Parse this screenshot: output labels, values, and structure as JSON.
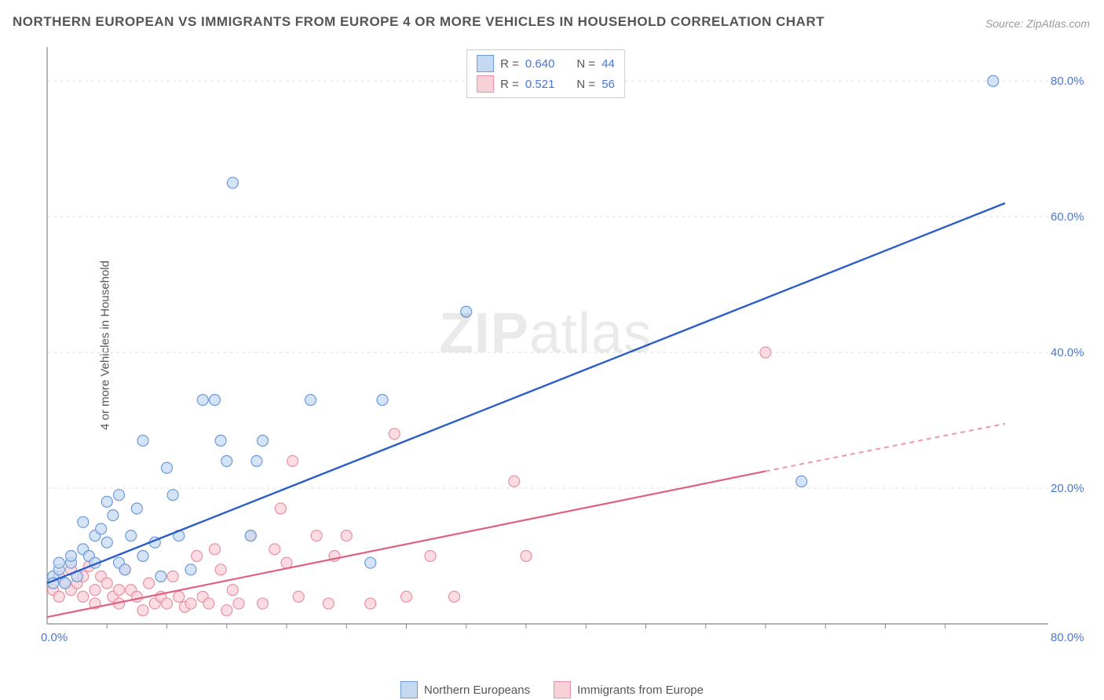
{
  "title": "NORTHERN EUROPEAN VS IMMIGRANTS FROM EUROPE 4 OR MORE VEHICLES IN HOUSEHOLD CORRELATION CHART",
  "source": "Source: ZipAtlas.com",
  "y_axis_label": "4 or more Vehicles in Household",
  "watermark_bold": "ZIP",
  "watermark_rest": "atlas",
  "chart": {
    "type": "scatter",
    "background_color": "#ffffff",
    "grid_color": "#e0e0e0",
    "axis_color": "#888888",
    "tick_color": "#888888",
    "x_range": [
      0,
      80
    ],
    "y_range": [
      0,
      85
    ],
    "y_gridlines": [
      20,
      40,
      60,
      80
    ],
    "y_tick_labels": [
      "20.0%",
      "40.0%",
      "60.0%",
      "80.0%"
    ],
    "y_tick_color": "#4876d6",
    "x_tick_min_label": "0.0%",
    "x_tick_max_label": "80.0%",
    "x_tick_color": "#4876d6",
    "x_minor_ticks": [
      5,
      10,
      15,
      20,
      25,
      30,
      35,
      40,
      45,
      50,
      55,
      60,
      65,
      70,
      75
    ],
    "series": [
      {
        "name": "Northern Europeans",
        "color_fill": "#c5d9f1",
        "color_stroke": "#6b9bd8",
        "marker_radius": 7,
        "marker_opacity": 0.75,
        "R": "0.640",
        "N": "44",
        "trend": {
          "x1": 0,
          "y1": 6,
          "x2": 80,
          "y2": 62,
          "color": "#2b5ec9",
          "width": 2.4
        },
        "points": [
          [
            0.5,
            7
          ],
          [
            0.5,
            6
          ],
          [
            1,
            8
          ],
          [
            1,
            9
          ],
          [
            1.5,
            6
          ],
          [
            2,
            9
          ],
          [
            2,
            10
          ],
          [
            2.5,
            7
          ],
          [
            3,
            11
          ],
          [
            3,
            15
          ],
          [
            3.5,
            10
          ],
          [
            4,
            9
          ],
          [
            4,
            13
          ],
          [
            4.5,
            14
          ],
          [
            5,
            18
          ],
          [
            5,
            12
          ],
          [
            5.5,
            16
          ],
          [
            6,
            19
          ],
          [
            6,
            9
          ],
          [
            6.5,
            8
          ],
          [
            7,
            13
          ],
          [
            7.5,
            17
          ],
          [
            8,
            27
          ],
          [
            8,
            10
          ],
          [
            9,
            12
          ],
          [
            9.5,
            7
          ],
          [
            10,
            23
          ],
          [
            10.5,
            19
          ],
          [
            11,
            13
          ],
          [
            12,
            8
          ],
          [
            13,
            33
          ],
          [
            14,
            33
          ],
          [
            14.5,
            27
          ],
          [
            15,
            24
          ],
          [
            15.5,
            65
          ],
          [
            17,
            13
          ],
          [
            17.5,
            24
          ],
          [
            18,
            27
          ],
          [
            22,
            33
          ],
          [
            27,
            9
          ],
          [
            28,
            33
          ],
          [
            35,
            46
          ],
          [
            63,
            21
          ],
          [
            79,
            80
          ]
        ]
      },
      {
        "name": "Immigrants from Europe",
        "color_fill": "#f8d0d8",
        "color_stroke": "#e890a5",
        "marker_radius": 7,
        "marker_opacity": 0.75,
        "R": "0.521",
        "N": "56",
        "trend": {
          "x1": 0,
          "y1": 1,
          "x2": 60,
          "y2": 22.5,
          "dash_x2": 80,
          "dash_y2": 29.5,
          "color": "#e0607f",
          "width": 2.2
        },
        "points": [
          [
            0.5,
            5
          ],
          [
            1,
            7
          ],
          [
            1,
            4
          ],
          [
            1.5,
            6
          ],
          [
            2,
            5
          ],
          [
            2,
            8
          ],
          [
            2.5,
            6
          ],
          [
            3,
            7
          ],
          [
            3,
            4
          ],
          [
            3.5,
            8.5
          ],
          [
            4,
            5
          ],
          [
            4,
            3
          ],
          [
            4.5,
            7
          ],
          [
            5,
            6
          ],
          [
            5.5,
            4
          ],
          [
            6,
            5
          ],
          [
            6,
            3
          ],
          [
            6.5,
            8
          ],
          [
            7,
            5
          ],
          [
            7.5,
            4
          ],
          [
            8,
            2
          ],
          [
            8.5,
            6
          ],
          [
            9,
            3
          ],
          [
            9.5,
            4
          ],
          [
            10,
            3
          ],
          [
            10.5,
            7
          ],
          [
            11,
            4
          ],
          [
            11.5,
            2.5
          ],
          [
            12,
            3
          ],
          [
            12.5,
            10
          ],
          [
            13,
            4
          ],
          [
            13.5,
            3
          ],
          [
            14,
            11
          ],
          [
            14.5,
            8
          ],
          [
            15,
            2
          ],
          [
            15.5,
            5
          ],
          [
            16,
            3
          ],
          [
            17,
            13
          ],
          [
            18,
            3
          ],
          [
            19,
            11
          ],
          [
            19.5,
            17
          ],
          [
            20,
            9
          ],
          [
            20.5,
            24
          ],
          [
            21,
            4
          ],
          [
            22.5,
            13
          ],
          [
            23.5,
            3
          ],
          [
            24,
            10
          ],
          [
            25,
            13
          ],
          [
            27,
            3
          ],
          [
            29,
            28
          ],
          [
            30,
            4
          ],
          [
            32,
            10
          ],
          [
            34,
            4
          ],
          [
            39,
            21
          ],
          [
            40,
            10
          ],
          [
            60,
            40
          ]
        ]
      }
    ]
  },
  "stats_box": {
    "R_label": "R =",
    "N_label": "N =",
    "value_color": "#4876d6"
  },
  "legend": {
    "series1_label": "Northern Europeans",
    "series2_label": "Immigrants from Europe"
  }
}
